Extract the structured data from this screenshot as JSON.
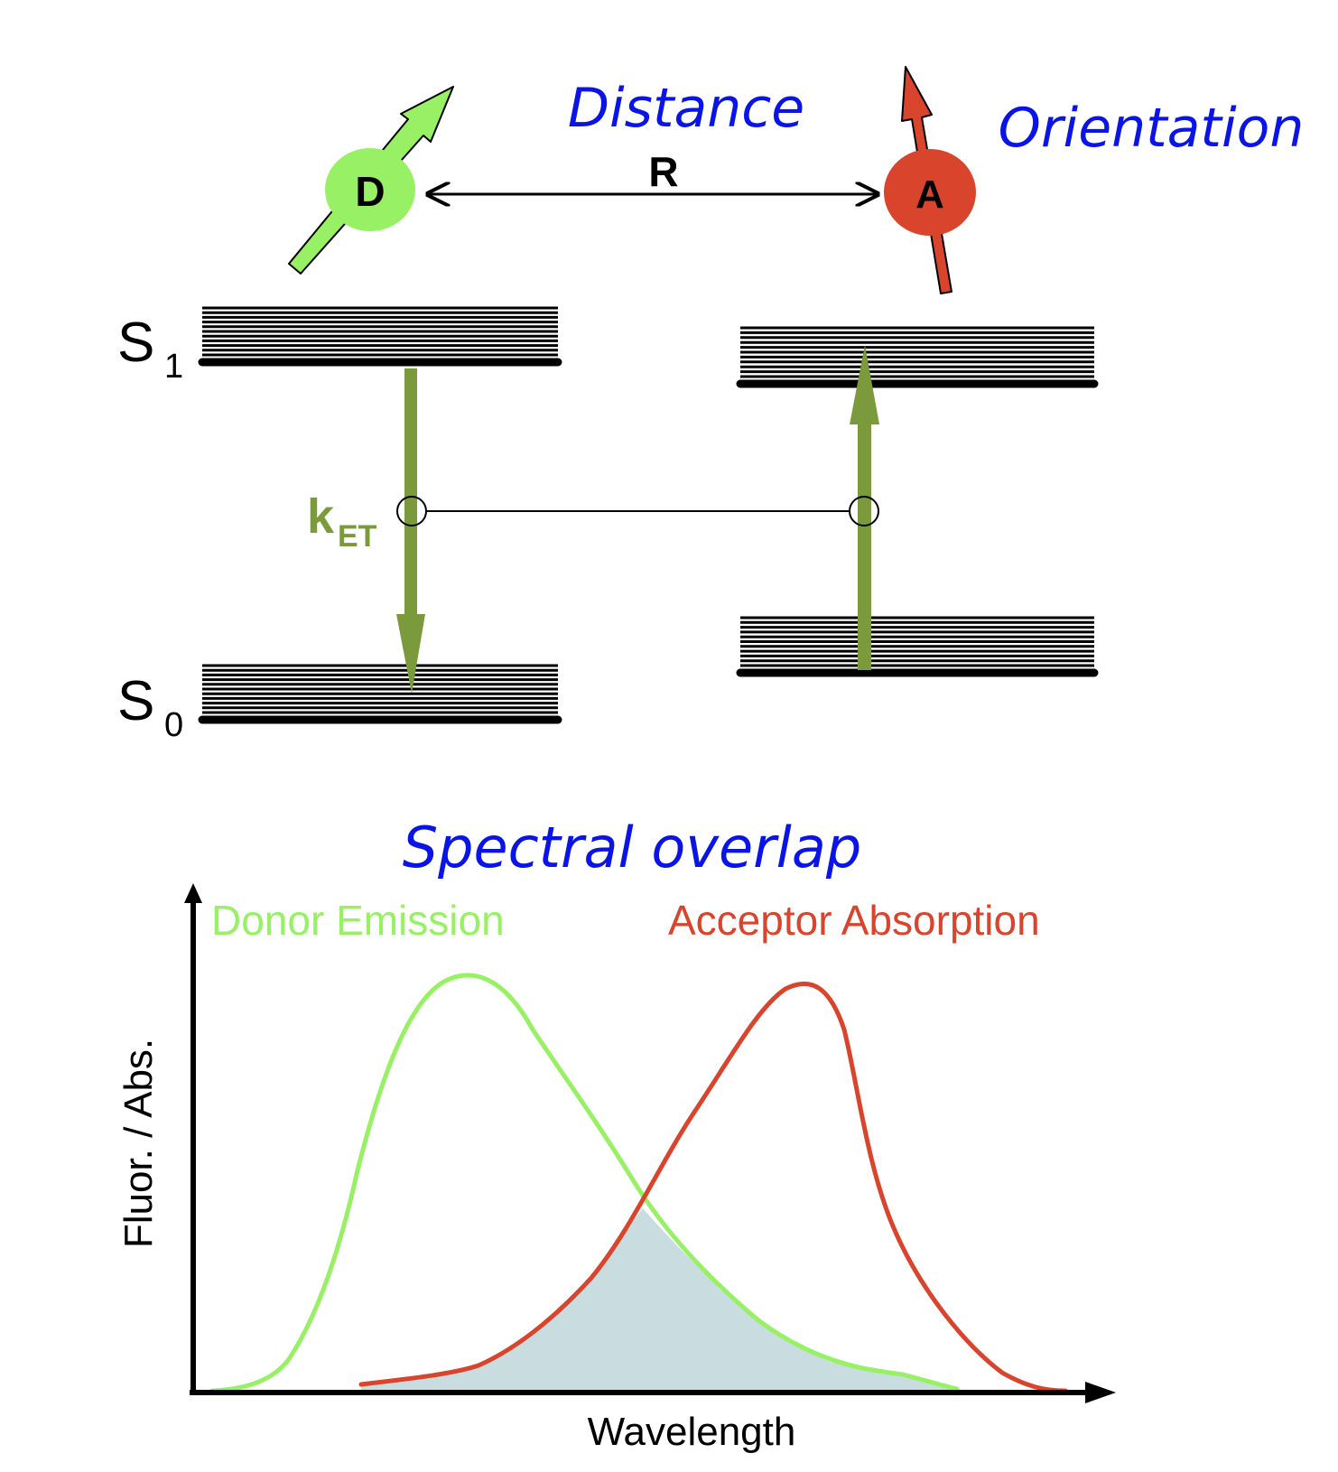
{
  "labels": {
    "distance": "Distance",
    "orientation": "Orientation",
    "r": "R",
    "donor": "D",
    "acceptor": "A",
    "s1_main": "S",
    "s1_sub": "1",
    "s0_main": "S",
    "s0_sub": "0",
    "ket_main": "k",
    "ket_sub": "ET",
    "spectral_overlap": "Spectral overlap",
    "donor_emission": "Donor Emission",
    "acceptor_absorption": "Acceptor Absorption",
    "y_axis": "Fluor. / Abs.",
    "x_axis": "Wavelength"
  },
  "colors": {
    "donor": "#98f064",
    "acceptor": "#d9442d",
    "transition_arrow": "#7a9a3c",
    "title_blue": "#0a14e6",
    "overlap_fill": "#c9dde0",
    "ink": "#000000"
  }
}
